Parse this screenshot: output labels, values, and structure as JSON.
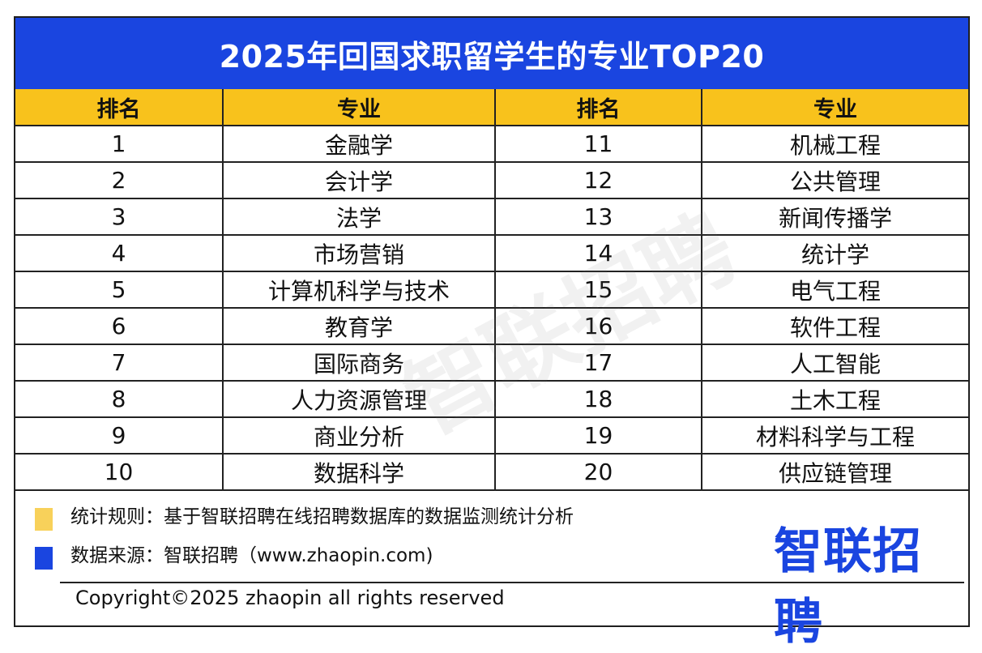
{
  "title": "2025年回国求职留学生的专业TOP20",
  "table": {
    "headers": [
      "排名",
      "专业",
      "排名",
      "专业"
    ],
    "rows": [
      [
        "1",
        "金融学",
        "11",
        "机械工程"
      ],
      [
        "2",
        "会计学",
        "12",
        "公共管理"
      ],
      [
        "3",
        "法学",
        "13",
        "新闻传播学"
      ],
      [
        "4",
        "市场营销",
        "14",
        "统计学"
      ],
      [
        "5",
        "计算机科学与技术",
        "15",
        "电气工程"
      ],
      [
        "6",
        "教育学",
        "16",
        "软件工程"
      ],
      [
        "7",
        "国际商务",
        "17",
        "人工智能"
      ],
      [
        "8",
        "人力资源管理",
        "18",
        "土木工程"
      ],
      [
        "9",
        "商业分析",
        "19",
        "材料科学与工程"
      ],
      [
        "10",
        "数据科学",
        "20",
        "供应链管理"
      ]
    ]
  },
  "watermark": "智联招聘",
  "notes": {
    "rule": "统计规则：基于智联招聘在线招聘数据库的数据监测统计分析",
    "source": "数据来源：智联招聘（www.zhaopin.com)"
  },
  "brand": "智联招聘",
  "copyright": "Copyright©2025 zhaopin all rights reserved",
  "colors": {
    "title_bg": "#1a45e0",
    "header_bg": "#f8c21c",
    "swatch_rule": "#f8d15a",
    "swatch_source": "#1a45e0"
  }
}
